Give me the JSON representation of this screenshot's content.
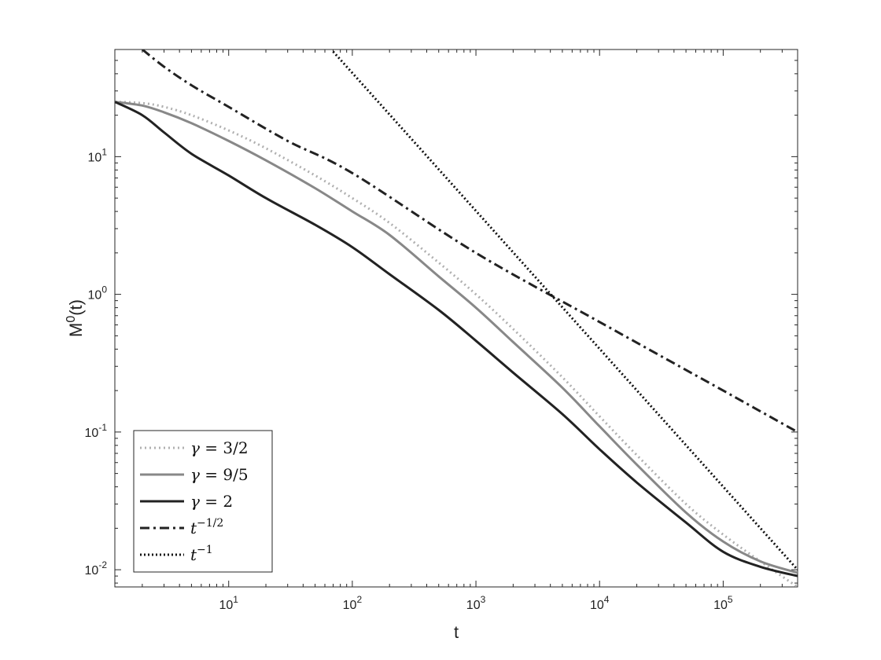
{
  "chart_data": {
    "type": "line",
    "title": "",
    "xlabel": "t",
    "ylabel_base": "M",
    "ylabel_sup": "0",
    "ylabel_tail": "(t)",
    "xscale": "log",
    "yscale": "log",
    "xlim": [
      1.2,
      400000
    ],
    "ylim": [
      0.0075,
      60
    ],
    "grid": false,
    "legend_position": "bottom-left",
    "x_ticks": [
      {
        "value": 10,
        "base": "10",
        "exp": "1"
      },
      {
        "value": 100,
        "base": "10",
        "exp": "2"
      },
      {
        "value": 1000,
        "base": "10",
        "exp": "3"
      },
      {
        "value": 10000,
        "base": "10",
        "exp": "4"
      },
      {
        "value": 100000,
        "base": "10",
        "exp": "5"
      }
    ],
    "y_ticks": [
      {
        "value": 0.01,
        "base": "10",
        "exp": "-2"
      },
      {
        "value": 0.1,
        "base": "10",
        "exp": "-1"
      },
      {
        "value": 1,
        "base": "10",
        "exp": "0"
      },
      {
        "value": 10,
        "base": "10",
        "exp": "1"
      }
    ],
    "series": [
      {
        "name": "γ = 3/2",
        "color": "#b0b0b0",
        "dash": "2,4",
        "width": 3,
        "x": [
          1.2,
          2,
          3,
          5,
          10,
          20,
          50,
          100,
          200,
          500,
          1000,
          2000,
          5000,
          10000,
          20000,
          50000,
          100000,
          200000,
          400000
        ],
        "y": [
          25,
          24.5,
          23,
          20,
          15.5,
          11.5,
          7.3,
          5.0,
          3.3,
          1.7,
          1.0,
          0.56,
          0.25,
          0.13,
          0.068,
          0.03,
          0.018,
          0.0115,
          0.0075
        ]
      },
      {
        "name": "γ = 9/5",
        "color": "#888888",
        "dash": "",
        "width": 3,
        "x": [
          1.2,
          2,
          3,
          5,
          10,
          20,
          50,
          100,
          200,
          500,
          1000,
          2000,
          5000,
          10000,
          20000,
          50000,
          100000,
          200000,
          400000
        ],
        "y": [
          25,
          23.5,
          21,
          17.5,
          13,
          9.4,
          5.9,
          4.0,
          2.7,
          1.35,
          0.8,
          0.45,
          0.21,
          0.11,
          0.058,
          0.026,
          0.016,
          0.0115,
          0.0095
        ]
      },
      {
        "name": "γ = 2",
        "color": "#222222",
        "dash": "",
        "width": 3,
        "x": [
          1.2,
          2,
          3,
          5,
          10,
          20,
          50,
          100,
          200,
          500,
          1000,
          2000,
          5000,
          10000,
          20000,
          50000,
          100000,
          200000,
          400000
        ],
        "y": [
          25,
          20,
          15,
          10.5,
          7.3,
          5.0,
          3.2,
          2.2,
          1.4,
          0.77,
          0.46,
          0.27,
          0.135,
          0.075,
          0.043,
          0.022,
          0.0135,
          0.0105,
          0.009
        ]
      },
      {
        "name": "t^{-1/2}",
        "color": "#222222",
        "dash": "12,5,3,5",
        "width": 3,
        "x": [
          2,
          3,
          5,
          10,
          30,
          100,
          1000,
          10000,
          100000,
          400000
        ],
        "y": [
          60,
          45,
          33,
          23,
          13,
          7.6,
          2.0,
          0.63,
          0.2,
          0.1
        ]
      },
      {
        "name": "t^{-1}",
        "color": "#111111",
        "dash": "2,3",
        "width": 3,
        "x": [
          70,
          400000
        ],
        "y": [
          58,
          0.01
        ]
      }
    ]
  },
  "legend": {
    "entries": [
      {
        "sym": "γ",
        "rest": " = 3/2",
        "sup": ""
      },
      {
        "sym": "γ",
        "rest": " = 9/5",
        "sup": ""
      },
      {
        "sym": "γ",
        "rest": " = 2",
        "sup": ""
      },
      {
        "sym": "t",
        "rest": "",
        "sup": "−1/2"
      },
      {
        "sym": "t",
        "rest": "",
        "sup": "−1"
      }
    ]
  }
}
